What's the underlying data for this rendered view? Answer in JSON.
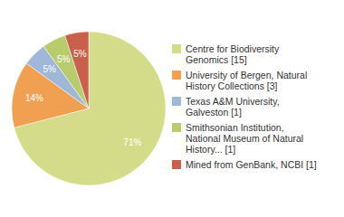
{
  "chart_data": {
    "type": "pie",
    "categories": [
      "Centre for Biodiversity\nGenomics [15]",
      "University of Bergen, Natural\nHistory Collections [3]",
      "Texas A&M University,\nGalveston [1]",
      "Smithsonian Institution,\nNational Museum of Natural\nHistory... [1]",
      "Mined from GenBank, NCBI [1]"
    ],
    "values": [
      71,
      14,
      5,
      5,
      5
    ],
    "value_labels": [
      "71%",
      "14%",
      "5%",
      "5%",
      "5%"
    ],
    "colors": [
      "#d4dc8a",
      "#f0a050",
      "#a0b8d8",
      "#b8cc6e",
      "#c8604c"
    ],
    "data_labels": true,
    "legend": "right"
  }
}
